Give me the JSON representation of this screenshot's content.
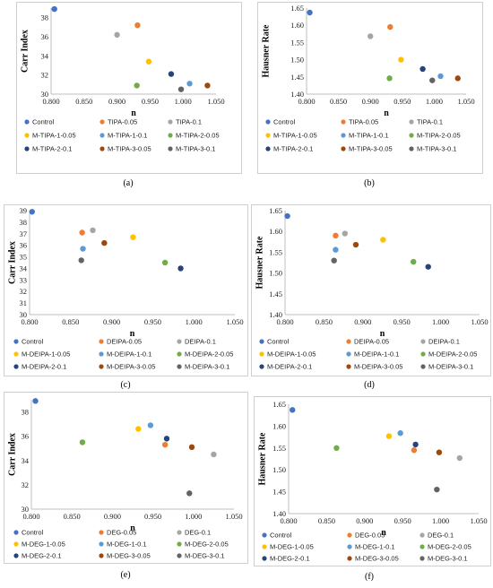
{
  "chart_data": [
    {
      "type": "scatter",
      "panel_label": "(a)",
      "xlabel": "n",
      "ylabel": "Carr Index",
      "xlim": [
        0.8,
        1.05
      ],
      "ylim": [
        30,
        39
      ],
      "xticks": [
        "0.800",
        "0.850",
        "0.900",
        "0.950",
        "1.000",
        "1.050"
      ],
      "yticks": [
        "30",
        "32",
        "34",
        "36",
        "38"
      ],
      "grid": false,
      "legend_position": "bottom",
      "series": [
        {
          "name": "Control",
          "color": "#4472C4",
          "x": 0.805,
          "y": 38.9
        },
        {
          "name": "TIPA-0.05",
          "color": "#ED7D31",
          "x": 0.931,
          "y": 37.2
        },
        {
          "name": "TIPA-0.1",
          "color": "#A5A5A5",
          "x": 0.9,
          "y": 36.2
        },
        {
          "name": "M-TIPA-1-0.05",
          "color": "#FFC000",
          "x": 0.948,
          "y": 33.4
        },
        {
          "name": "M-TIPA-1-0.1",
          "color": "#5B9BD5",
          "x": 1.01,
          "y": 31.1
        },
        {
          "name": "M-TIPA-2-0.05",
          "color": "#70AD47",
          "x": 0.93,
          "y": 30.9
        },
        {
          "name": "M-TIPA-2-0.1",
          "color": "#264478",
          "x": 0.982,
          "y": 32.1
        },
        {
          "name": "M-TIPA-3-0.05",
          "color": "#9E480E",
          "x": 1.037,
          "y": 30.9
        },
        {
          "name": "M-TIPA-3-0.1",
          "color": "#636363",
          "x": 0.997,
          "y": 30.5
        }
      ]
    },
    {
      "type": "scatter",
      "panel_label": "(b)",
      "xlabel": "n",
      "ylabel": "Hausner Rate",
      "xlim": [
        0.8,
        1.05
      ],
      "ylim": [
        1.4,
        1.65
      ],
      "xticks": [
        "0.800",
        "0.850",
        "0.900",
        "0.950",
        "1.000",
        "1.050"
      ],
      "yticks": [
        "1.40",
        "1.45",
        "1.50",
        "1.55",
        "1.60",
        "1.65"
      ],
      "grid": false,
      "legend_position": "bottom",
      "series": [
        {
          "name": "Control",
          "color": "#4472C4",
          "x": 0.805,
          "y": 1.637
        },
        {
          "name": "TIPA-0.05",
          "color": "#ED7D31",
          "x": 0.931,
          "y": 1.595
        },
        {
          "name": "TIPA-0.1",
          "color": "#A5A5A5",
          "x": 0.9,
          "y": 1.568
        },
        {
          "name": "M-TIPA-1-0.05",
          "color": "#FFC000",
          "x": 0.948,
          "y": 1.5
        },
        {
          "name": "M-TIPA-1-0.1",
          "color": "#5B9BD5",
          "x": 1.01,
          "y": 1.452
        },
        {
          "name": "M-TIPA-2-0.05",
          "color": "#70AD47",
          "x": 0.93,
          "y": 1.446
        },
        {
          "name": "M-TIPA-2-0.1",
          "color": "#264478",
          "x": 0.982,
          "y": 1.473
        },
        {
          "name": "M-TIPA-3-0.05",
          "color": "#9E480E",
          "x": 1.037,
          "y": 1.446
        },
        {
          "name": "M-TIPA-3-0.1",
          "color": "#636363",
          "x": 0.997,
          "y": 1.44
        }
      ]
    },
    {
      "type": "scatter",
      "panel_label": "(c)",
      "xlabel": "n",
      "ylabel": "Carr Index",
      "xlim": [
        0.8,
        1.05
      ],
      "ylim": [
        30,
        39
      ],
      "xticks": [
        "0.800",
        "0.850",
        "0.900",
        "0.950",
        "1.000",
        "1.050"
      ],
      "yticks": [
        "30",
        "31",
        "32",
        "33",
        "34",
        "35",
        "36",
        "37",
        "38",
        "39"
      ],
      "grid": false,
      "legend_position": "bottom",
      "series": [
        {
          "name": "Control",
          "color": "#4472C4",
          "x": 0.803,
          "y": 38.9
        },
        {
          "name": "DEIPA-0.05",
          "color": "#ED7D31",
          "x": 0.864,
          "y": 37.1
        },
        {
          "name": "DEIPA-0.1",
          "color": "#A5A5A5",
          "x": 0.877,
          "y": 37.3
        },
        {
          "name": "M-DEIPA-1-0.05",
          "color": "#FFC000",
          "x": 0.926,
          "y": 36.7
        },
        {
          "name": "M-DEIPA-1-0.1",
          "color": "#5B9BD5",
          "x": 0.865,
          "y": 35.7
        },
        {
          "name": "M-DEIPA-2-0.05",
          "color": "#70AD47",
          "x": 0.965,
          "y": 34.5
        },
        {
          "name": "M-DEIPA-2-0.1",
          "color": "#264478",
          "x": 0.984,
          "y": 34.0
        },
        {
          "name": "M-DEIPA-3-0.05",
          "color": "#9E480E",
          "x": 0.891,
          "y": 36.2
        },
        {
          "name": "M-DEIPA-3-0.1",
          "color": "#636363",
          "x": 0.863,
          "y": 34.7
        }
      ]
    },
    {
      "type": "scatter",
      "panel_label": "(d)",
      "xlabel": "n",
      "ylabel": "Hausner Rate",
      "xlim": [
        0.8,
        1.05
      ],
      "ylim": [
        1.4,
        1.65
      ],
      "xticks": [
        "0.800",
        "0.850",
        "0.900",
        "0.950",
        "1.000",
        "1.050"
      ],
      "yticks": [
        "1.40",
        "1.45",
        "1.50",
        "1.55",
        "1.60",
        "1.65"
      ],
      "grid": false,
      "legend_position": "bottom",
      "series": [
        {
          "name": "Control",
          "color": "#4472C4",
          "x": 0.803,
          "y": 1.637
        },
        {
          "name": "DEIPA-0.05",
          "color": "#ED7D31",
          "x": 0.865,
          "y": 1.59
        },
        {
          "name": "DEIPA-0.1",
          "color": "#A5A5A5",
          "x": 0.877,
          "y": 1.595
        },
        {
          "name": "M-DEIPA-1-0.05",
          "color": "#FFC000",
          "x": 0.926,
          "y": 1.58
        },
        {
          "name": "M-DEIPA-1-0.1",
          "color": "#5B9BD5",
          "x": 0.865,
          "y": 1.556
        },
        {
          "name": "M-DEIPA-2-0.05",
          "color": "#70AD47",
          "x": 0.965,
          "y": 1.527
        },
        {
          "name": "M-DEIPA-2-0.1",
          "color": "#264478",
          "x": 0.984,
          "y": 1.515
        },
        {
          "name": "M-DEIPA-3-0.05",
          "color": "#9E480E",
          "x": 0.891,
          "y": 1.568
        },
        {
          "name": "M-DEIPA-3-0.1",
          "color": "#636363",
          "x": 0.863,
          "y": 1.53
        }
      ]
    },
    {
      "type": "scatter",
      "panel_label": "(e)",
      "xlabel": "n",
      "ylabel": "Carr Index",
      "xlim": [
        0.8,
        1.05
      ],
      "ylim": [
        30,
        39
      ],
      "xticks": [
        "0.800",
        "0.850",
        "0.900",
        "0.950",
        "1.000",
        "1.050"
      ],
      "yticks": [
        "30",
        "32",
        "34",
        "36",
        "38"
      ],
      "grid": false,
      "legend_position": "bottom",
      "series": [
        {
          "name": "Control",
          "color": "#4472C4",
          "x": 0.805,
          "y": 38.9
        },
        {
          "name": "DEG-0.05",
          "color": "#ED7D31",
          "x": 0.965,
          "y": 35.3
        },
        {
          "name": "DEG-0.1",
          "color": "#A5A5A5",
          "x": 1.025,
          "y": 34.5
        },
        {
          "name": "M-DEG-1-0.05",
          "color": "#FFC000",
          "x": 0.932,
          "y": 36.6
        },
        {
          "name": "M-DEG-1-0.1",
          "color": "#5B9BD5",
          "x": 0.947,
          "y": 36.9
        },
        {
          "name": "M-DEG-2-0.05",
          "color": "#70AD47",
          "x": 0.863,
          "y": 35.5
        },
        {
          "name": "M-DEG-2-0.1",
          "color": "#264478",
          "x": 0.967,
          "y": 35.8
        },
        {
          "name": "M-DEG-3-0.05",
          "color": "#9E480E",
          "x": 0.998,
          "y": 35.1
        },
        {
          "name": "M-DEG-3-0.1",
          "color": "#636363",
          "x": 0.995,
          "y": 31.3
        }
      ]
    },
    {
      "type": "scatter",
      "panel_label": "(f)",
      "xlabel": "n",
      "ylabel": "Hausner Rate",
      "xlim": [
        0.8,
        1.05
      ],
      "ylim": [
        1.4,
        1.65
      ],
      "xticks": [
        "0.800",
        "0.850",
        "0.900",
        "0.950",
        "1.000",
        "1.050"
      ],
      "yticks": [
        "1.40",
        "1.45",
        "1.50",
        "1.55",
        "1.60",
        "1.65"
      ],
      "grid": false,
      "legend_position": "bottom",
      "series": [
        {
          "name": "Control",
          "color": "#4472C4",
          "x": 0.805,
          "y": 1.637
        },
        {
          "name": "DEG-0.05",
          "color": "#ED7D31",
          "x": 0.965,
          "y": 1.545
        },
        {
          "name": "DEG-0.1",
          "color": "#A5A5A5",
          "x": 1.025,
          "y": 1.527
        },
        {
          "name": "M-DEG-1-0.05",
          "color": "#FFC000",
          "x": 0.932,
          "y": 1.577
        },
        {
          "name": "M-DEG-1-0.1",
          "color": "#5B9BD5",
          "x": 0.947,
          "y": 1.584
        },
        {
          "name": "M-DEG-2-0.05",
          "color": "#70AD47",
          "x": 0.863,
          "y": 1.55
        },
        {
          "name": "M-DEG-2-0.1",
          "color": "#264478",
          "x": 0.967,
          "y": 1.558
        },
        {
          "name": "M-DEG-3-0.05",
          "color": "#9E480E",
          "x": 0.998,
          "y": 1.54
        },
        {
          "name": "M-DEG-3-0.1",
          "color": "#636363",
          "x": 0.995,
          "y": 1.455
        }
      ]
    }
  ]
}
